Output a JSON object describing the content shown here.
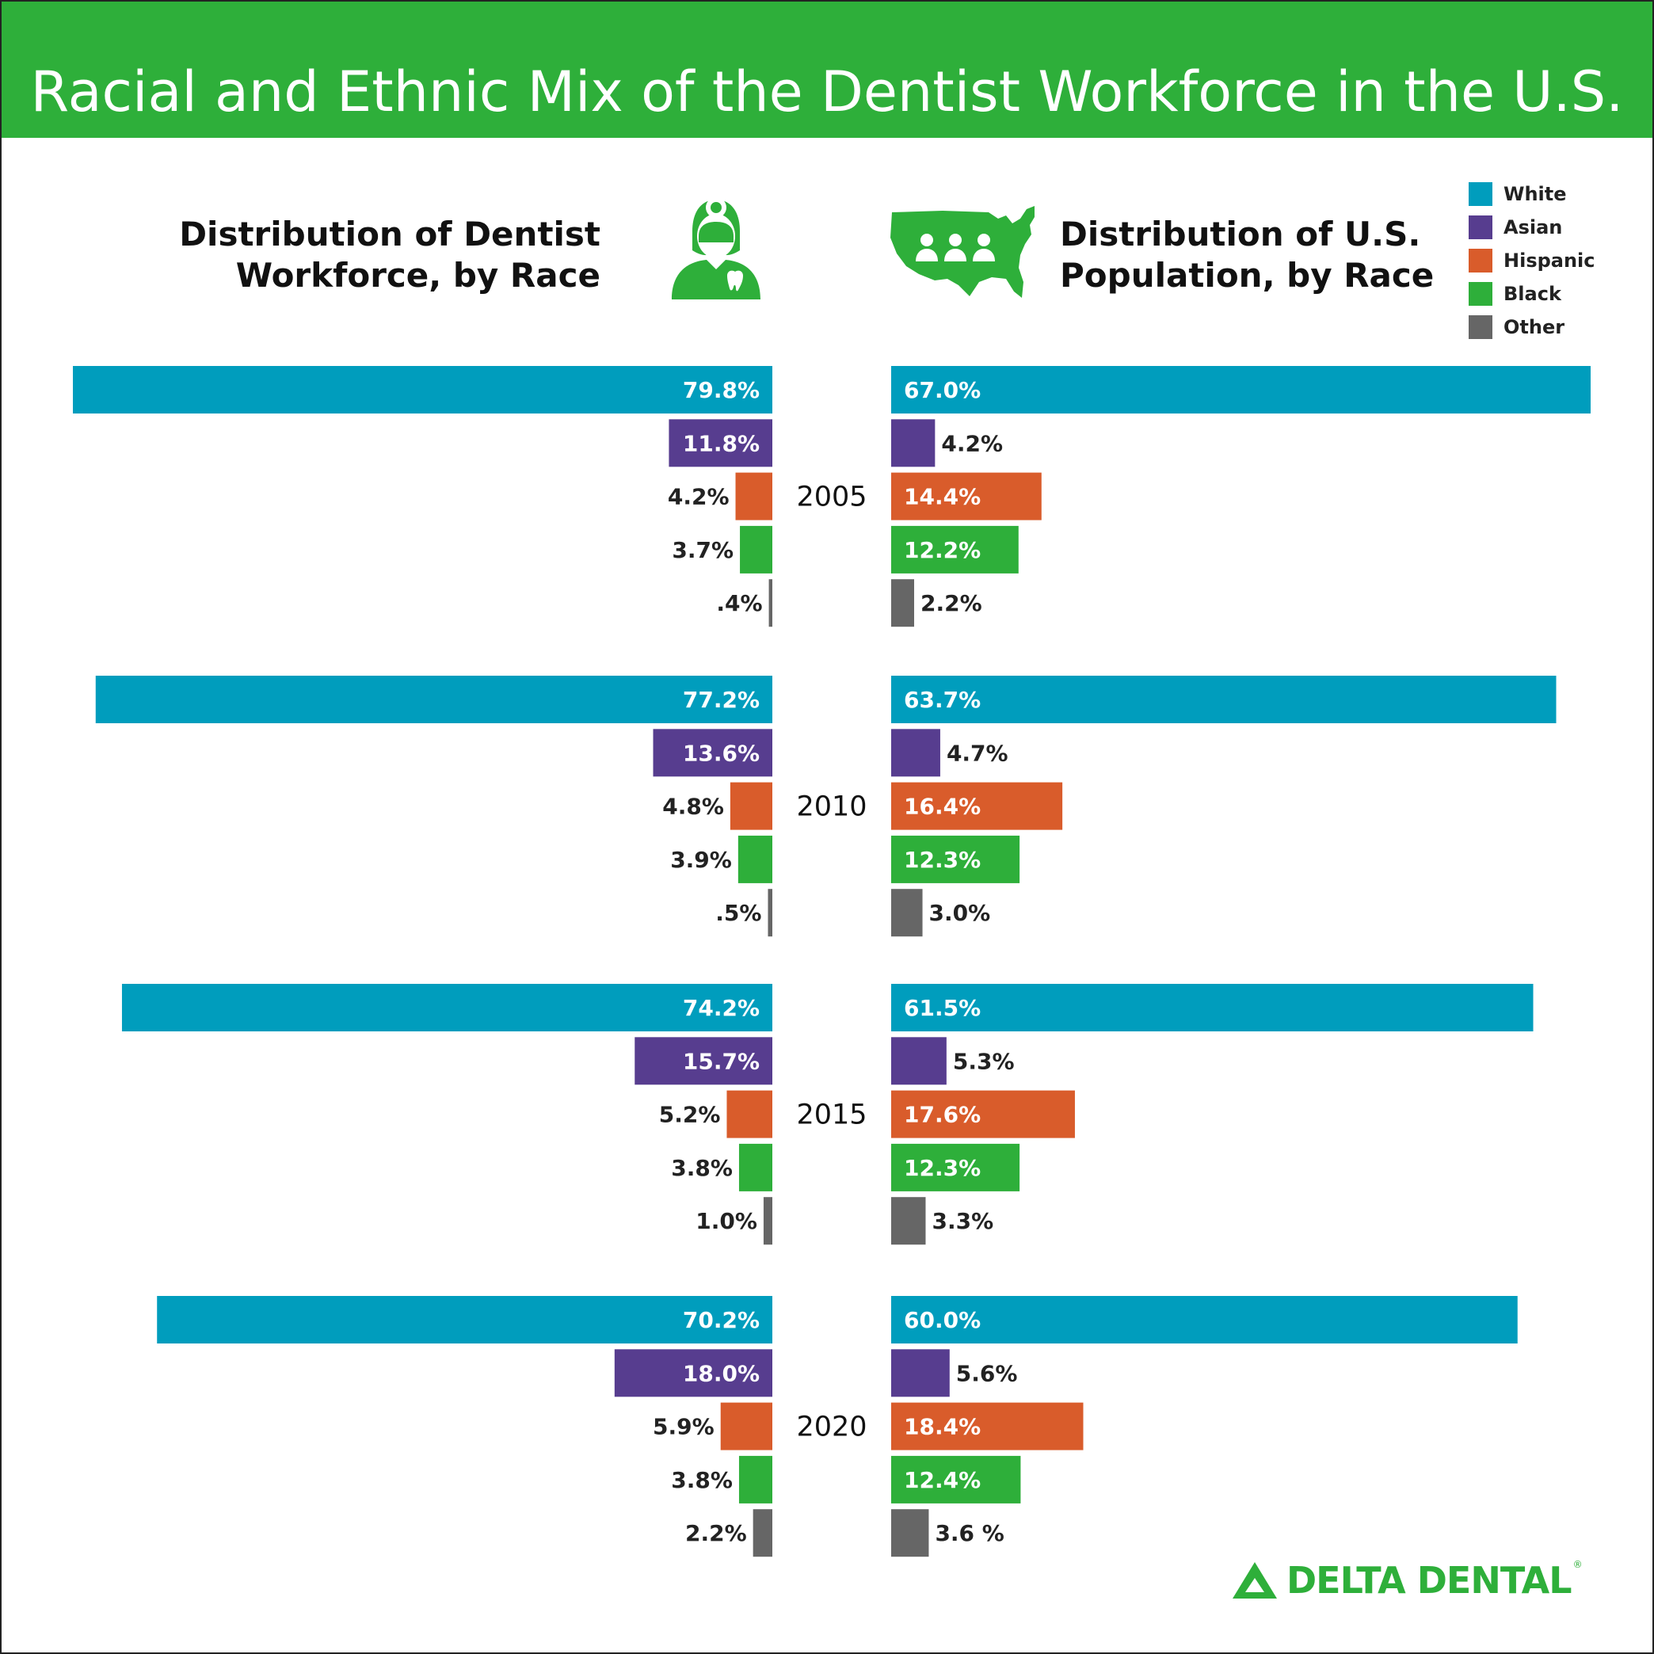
{
  "header": {
    "title": "Racial and Ethnic Mix of the Dentist Workforce in the U.S."
  },
  "panels": {
    "left_title": "Distribution of Dentist\nWorkforce, by Race",
    "right_title": "Distribution of U.S.\nPopulation, by Race"
  },
  "icons": {
    "left": "dentist-icon",
    "right": "us-map-people-icon"
  },
  "colors": {
    "White": "#009dbd",
    "Asian": "#573d8f",
    "Hispanic": "#d95c2b",
    "Black": "#2eaf3a",
    "Other": "#666666",
    "brand": "#2eaf3a"
  },
  "legend": [
    {
      "label": "White",
      "color": "#009dbd"
    },
    {
      "label": "Asian",
      "color": "#573d8f"
    },
    {
      "label": "Hispanic",
      "color": "#d95c2b"
    },
    {
      "label": "Black",
      "color": "#2eaf3a"
    },
    {
      "label": "Other",
      "color": "#666666"
    }
  ],
  "chart_data": {
    "type": "bar",
    "orientation": "horizontal-diverging",
    "categories": [
      "White",
      "Asian",
      "Hispanic",
      "Black",
      "Other"
    ],
    "groups": [
      {
        "year": "2005",
        "dentist_workforce": {
          "values": [
            79.8,
            11.8,
            4.2,
            3.7,
            0.4
          ],
          "labels": [
            "79.8%",
            "11.8%",
            "4.2%",
            "3.7%",
            ".4%"
          ]
        },
        "us_population": {
          "values": [
            67.0,
            4.2,
            14.4,
            12.2,
            2.2
          ],
          "labels": [
            "67.0%",
            "4.2%",
            "14.4%",
            "12.2%",
            "2.2%"
          ]
        }
      },
      {
        "year": "2010",
        "dentist_workforce": {
          "values": [
            77.2,
            13.6,
            4.8,
            3.9,
            0.5
          ],
          "labels": [
            "77.2%",
            "13.6%",
            "4.8%",
            "3.9%",
            ".5%"
          ]
        },
        "us_population": {
          "values": [
            63.7,
            4.7,
            16.4,
            12.3,
            3.0
          ],
          "labels": [
            "63.7%",
            "4.7%",
            "16.4%",
            "12.3%",
            "3.0%"
          ]
        }
      },
      {
        "year": "2015",
        "dentist_workforce": {
          "values": [
            74.2,
            15.7,
            5.2,
            3.8,
            1.0
          ],
          "labels": [
            "74.2%",
            "15.7%",
            "5.2%",
            "3.8%",
            "1.0%"
          ]
        },
        "us_population": {
          "values": [
            61.5,
            5.3,
            17.6,
            12.3,
            3.3
          ],
          "labels": [
            "61.5%",
            "5.3%",
            "17.6%",
            "12.3%",
            "3.3%"
          ]
        }
      },
      {
        "year": "2020",
        "dentist_workforce": {
          "values": [
            70.2,
            18.0,
            5.9,
            3.8,
            2.2
          ],
          "labels": [
            "70.2%",
            "18.0%",
            "5.9%",
            "3.8%",
            "2.2%"
          ]
        },
        "us_population": {
          "values": [
            60.0,
            5.6,
            18.4,
            12.4,
            3.6
          ],
          "labels": [
            "60.0%",
            "5.6%",
            "18.4%",
            "12.4%",
            "3.6 %"
          ]
        }
      }
    ]
  },
  "footer": {
    "logo_text": "DELTA DENTAL",
    "logo_mark": "delta-triangle-icon",
    "registered": "®"
  }
}
